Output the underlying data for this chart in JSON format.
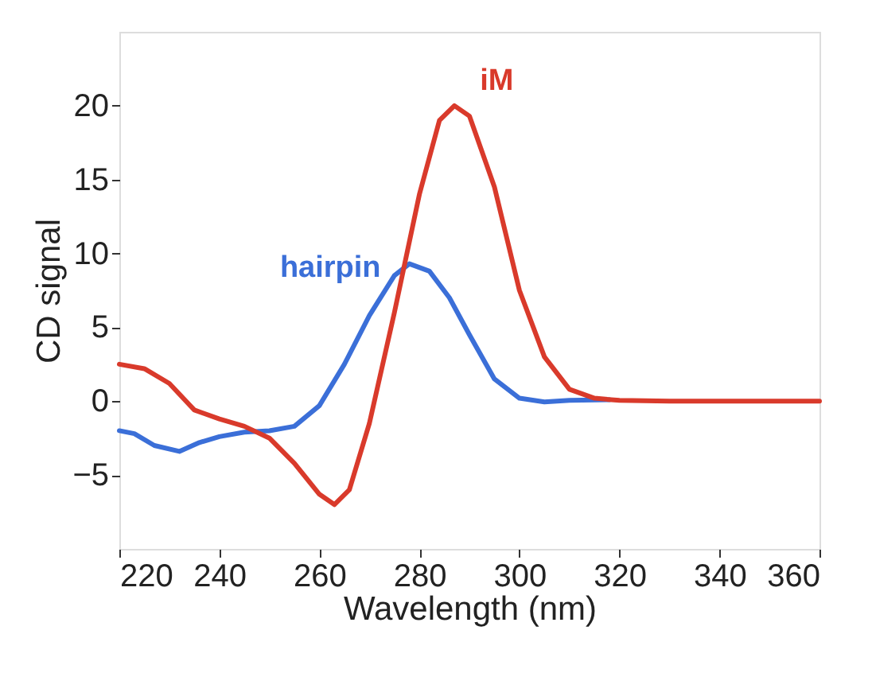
{
  "chart_data": {
    "type": "line",
    "xlabel": "Wavelength (nm)",
    "ylabel": "CD signal",
    "xlim": [
      220,
      360
    ],
    "xticks": [
      220,
      240,
      260,
      280,
      300,
      320,
      340,
      360
    ],
    "ylim": [
      -10,
      25
    ],
    "yticks": [
      -5,
      0,
      5,
      10,
      15,
      20
    ],
    "grid": false,
    "legend": false,
    "marker": "none",
    "line_style": "solid",
    "series": [
      {
        "name": "hairpin",
        "color": "#3b6fd8",
        "x": [
          220,
          223,
          227,
          232,
          236,
          240,
          245,
          250,
          255,
          260,
          265,
          270,
          275,
          278,
          282,
          286,
          290,
          295,
          300,
          305,
          310,
          318
        ],
        "values": [
          -2,
          -2.2,
          -3,
          -3.4,
          -2.8,
          -2.4,
          -2.1,
          -2,
          -1.7,
          -0.3,
          2.5,
          5.8,
          8.5,
          9.3,
          8.8,
          7,
          4.5,
          1.5,
          0.2,
          -0.05,
          0.05,
          0.1
        ]
      },
      {
        "name": "iM",
        "color": "#d93a2b",
        "x": [
          220,
          225,
          230,
          235,
          240,
          245,
          250,
          255,
          260,
          263,
          266,
          270,
          275,
          280,
          284,
          287,
          290,
          295,
          300,
          305,
          310,
          315,
          320,
          330,
          360
        ],
        "values": [
          2.5,
          2.2,
          1.2,
          -0.6,
          -1.2,
          -1.7,
          -2.5,
          -4.2,
          -6.3,
          -7,
          -6,
          -1.5,
          6,
          14,
          19,
          20,
          19.3,
          14.5,
          7.5,
          3,
          0.8,
          0.2,
          0.05,
          0,
          0
        ]
      }
    ]
  }
}
